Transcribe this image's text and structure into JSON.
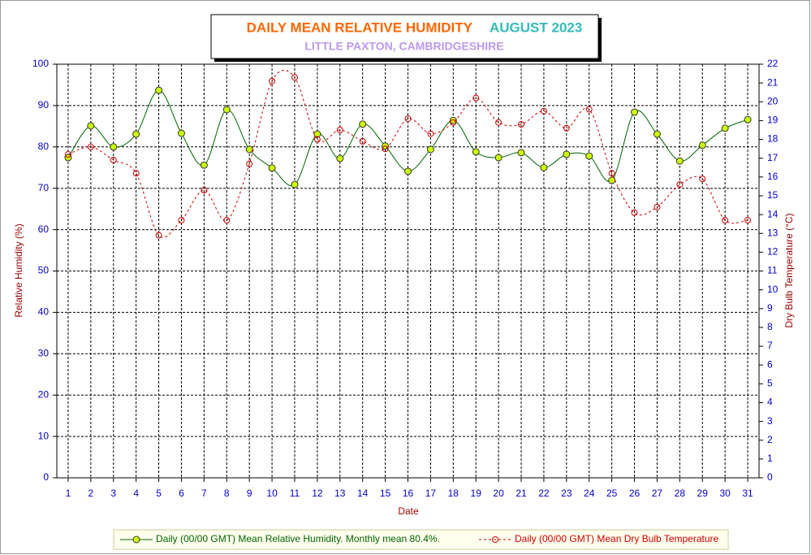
{
  "chart_data": {
    "type": "line",
    "title": "DAILY MEAN RELATIVE HUMIDITY",
    "period": "AUGUST 2023",
    "subtitle": "LITTLE PAXTON, CAMBRIDGESHIRE",
    "x_label": "Date",
    "y_label": "Relative Humidity (%)",
    "y2_label": "Dry Bulb Temperature (°C)",
    "x": [
      1,
      2,
      3,
      4,
      5,
      6,
      7,
      8,
      9,
      10,
      11,
      12,
      13,
      14,
      15,
      16,
      17,
      18,
      19,
      20,
      21,
      22,
      23,
      24,
      25,
      26,
      27,
      28,
      29,
      30,
      31
    ],
    "xlim": [
      0.5,
      31.5
    ],
    "xticks": [
      1,
      2,
      3,
      4,
      5,
      6,
      7,
      8,
      9,
      10,
      11,
      12,
      13,
      14,
      15,
      16,
      17,
      18,
      19,
      20,
      21,
      22,
      23,
      24,
      25,
      26,
      27,
      28,
      29,
      30,
      31
    ],
    "ylim": [
      0,
      100
    ],
    "yticks": [
      0,
      10,
      20,
      30,
      40,
      50,
      60,
      70,
      80,
      90,
      100
    ],
    "y2lim": [
      0,
      22
    ],
    "y2ticks": [
      0,
      1,
      2,
      3,
      4,
      5,
      6,
      7,
      8,
      9,
      10,
      11,
      12,
      13,
      14,
      15,
      16,
      17,
      18,
      19,
      20,
      21,
      22
    ],
    "grid": true,
    "series": [
      {
        "name": "Daily (00/00 GMT) Mean Relative Humidity. Monthly mean 80.4%.",
        "color": "#006400",
        "marker_color": "#ccff00",
        "values": [
          77.4,
          85.1,
          80.0,
          83.1,
          93.7,
          83.3,
          75.6,
          89.0,
          79.4,
          74.9,
          70.9,
          83.1,
          77.2,
          85.5,
          80.2,
          74.1,
          79.4,
          86.4,
          78.8,
          77.4,
          78.6,
          75.0,
          78.2,
          77.8,
          71.9,
          88.4,
          83.1,
          76.6,
          80.4,
          84.5,
          86.6
        ]
      },
      {
        "name": "Daily (00/00 GMT) Mean Dry Bulb Temperature",
        "color": "#cc0000",
        "axis": "y2",
        "dashed": true,
        "values": [
          17.2,
          17.6,
          16.9,
          16.2,
          12.9,
          13.7,
          15.3,
          13.7,
          16.7,
          21.1,
          21.3,
          18.0,
          18.5,
          17.9,
          17.5,
          19.1,
          18.3,
          18.9,
          20.2,
          18.9,
          18.8,
          19.5,
          18.6,
          19.6,
          16.2,
          14.1,
          14.4,
          15.6,
          15.9,
          13.7,
          13.7
        ]
      }
    ]
  }
}
